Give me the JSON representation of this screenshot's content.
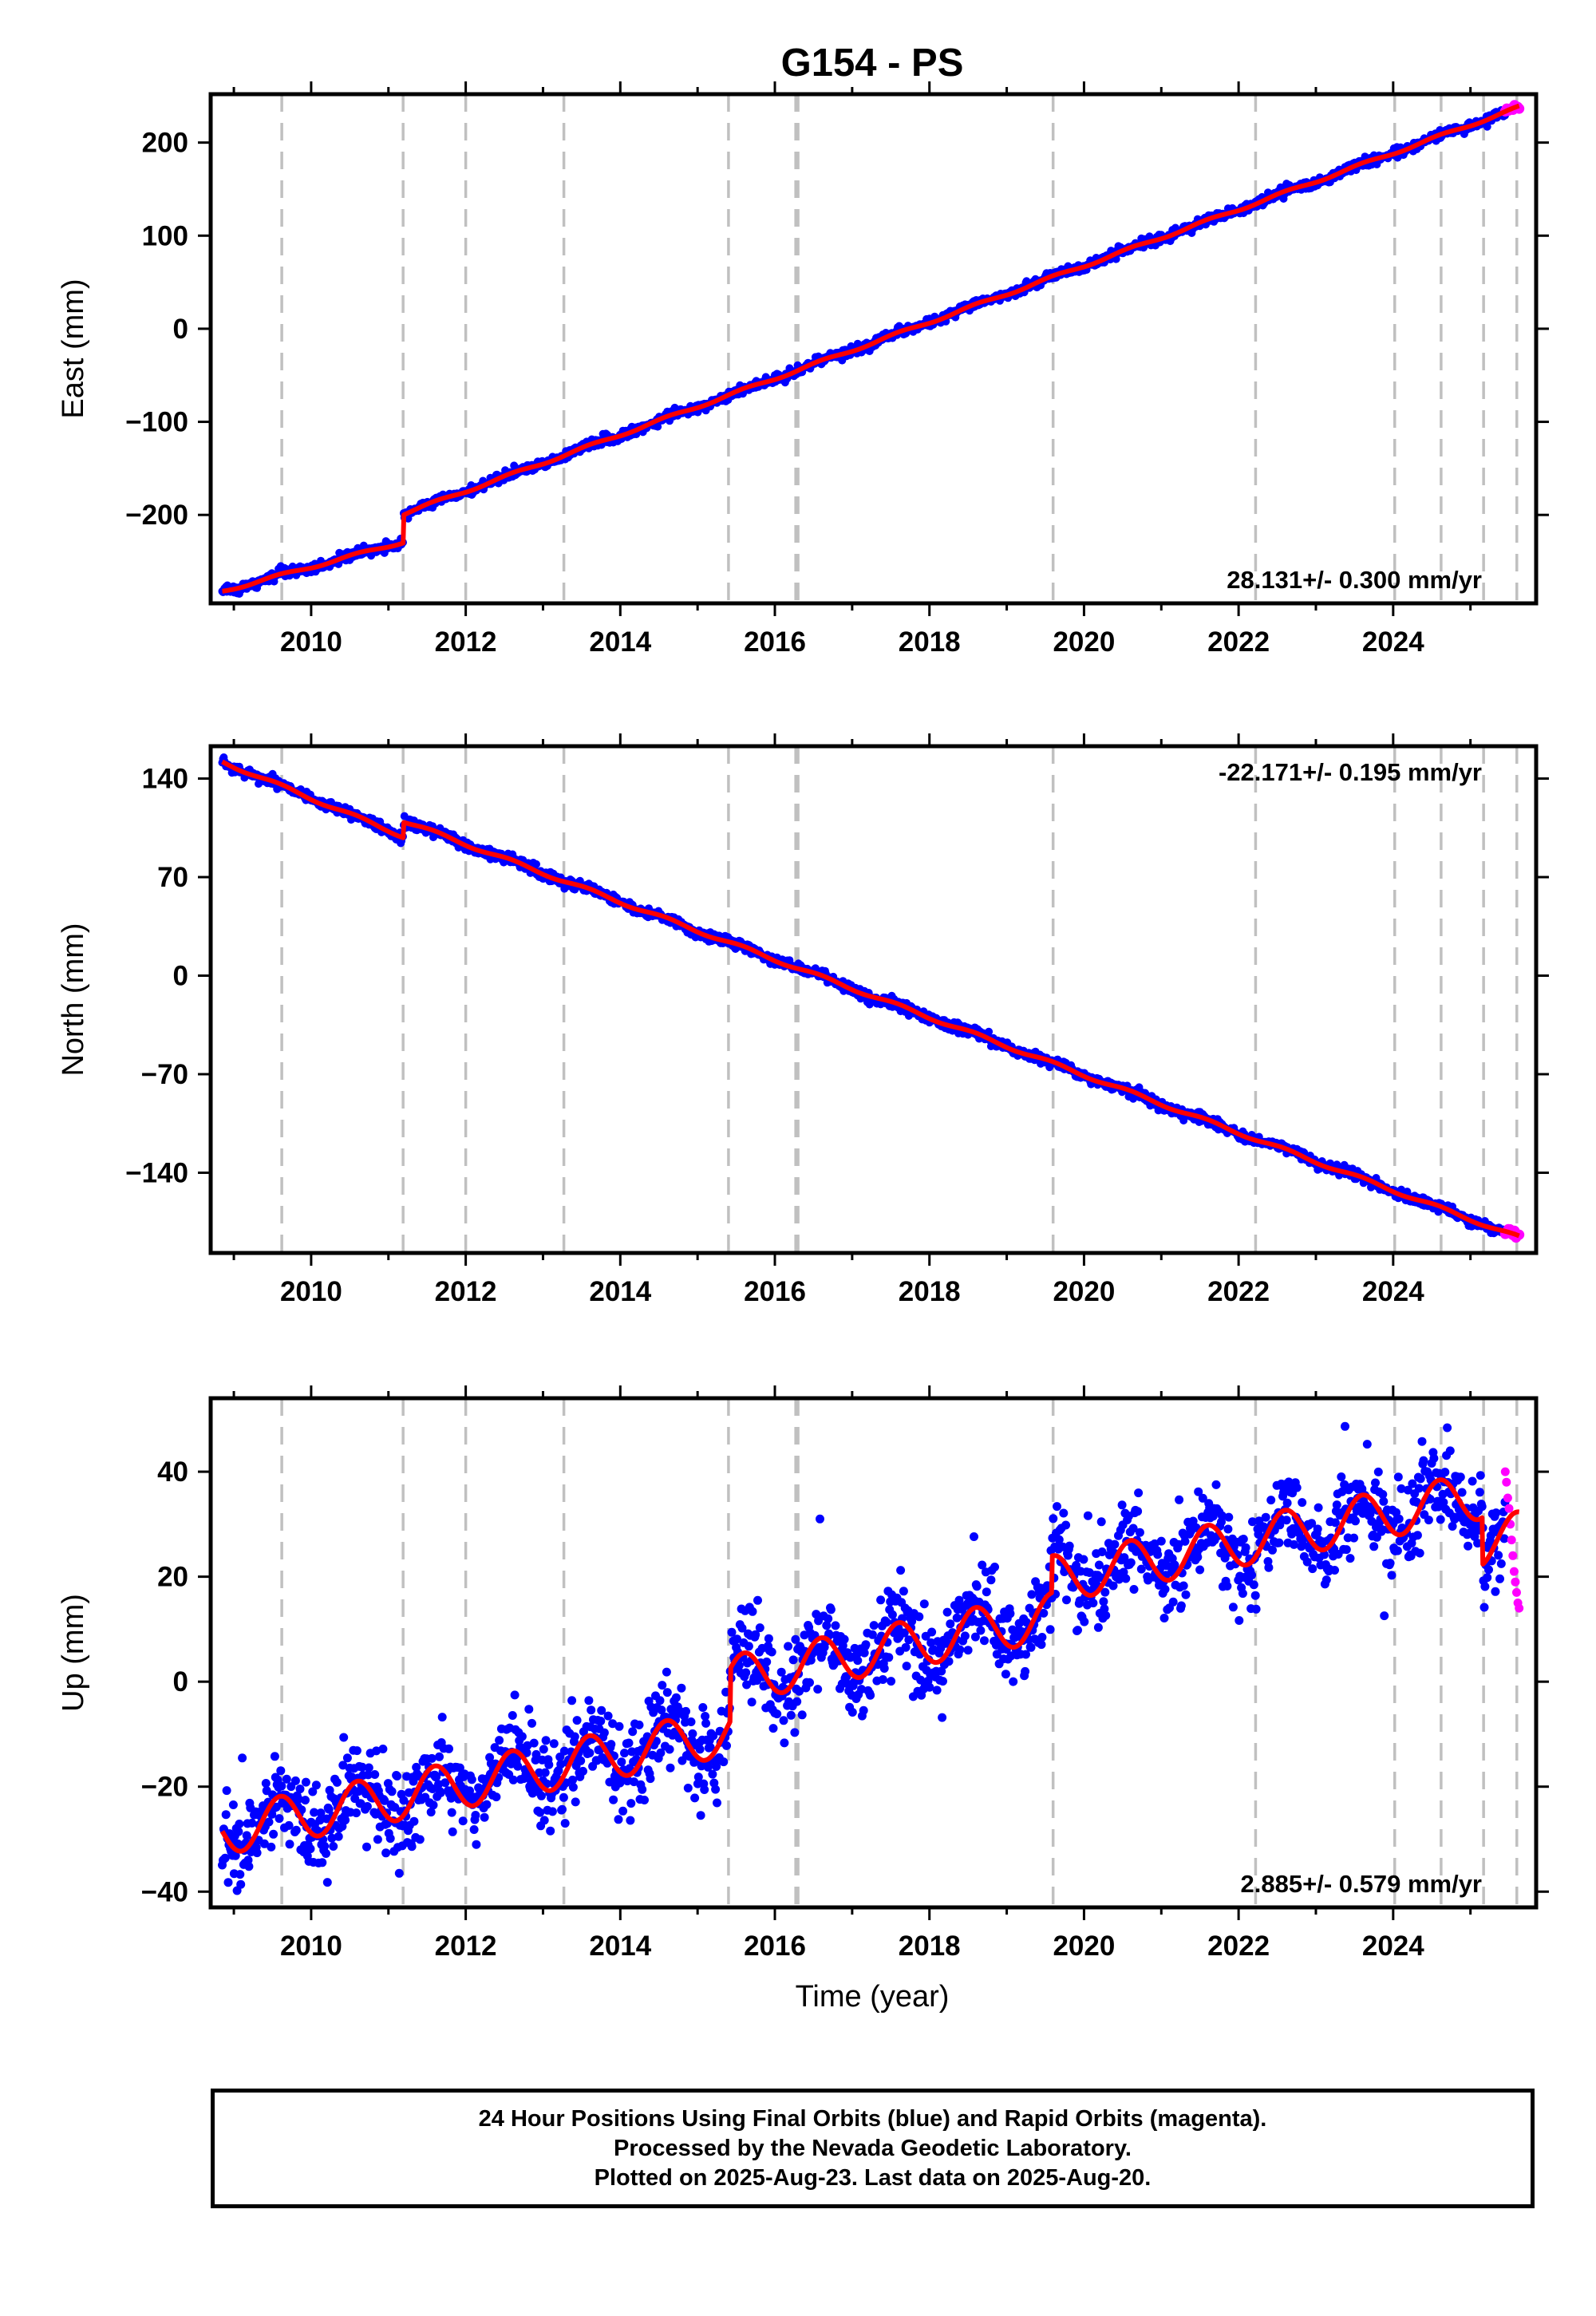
{
  "title": "G154 - PS",
  "xlabel": "Time (year)",
  "footer": {
    "line1": "24 Hour Positions Using Final Orbits (blue) and Rapid Orbits (magenta).",
    "line2": "Processed by the Nevada Geodetic Laboratory.",
    "line3": "Plotted on 2025-Aug-23. Last data on 2025-Aug-20."
  },
  "colors": {
    "final_orbits": "#0000ff",
    "rapid_orbits": "#ff00ff",
    "model_fit": "#ff0000",
    "equipment_change_lines": "#c0c0c0"
  },
  "chart_data": [
    {
      "type": "scatter",
      "panel": "east",
      "ylabel": "East (mm)",
      "xlim": [
        2008.7,
        2025.85
      ],
      "ylim": [
        -295,
        252
      ],
      "xticks": [
        2010,
        2012,
        2014,
        2016,
        2018,
        2020,
        2022,
        2024
      ],
      "yticks": [
        -200,
        -100,
        0,
        100,
        200
      ],
      "grid": false,
      "rate_label": "28.131+/- 0.300 mm/yr",
      "rate_label_position": "bottom-right",
      "rate": 28.131,
      "annual_amplitude": 1.5,
      "offsets": [
        {
          "year": 2011.19,
          "step": 30
        }
      ],
      "series": [
        {
          "name": "Final Orbits",
          "x_range": [
            2008.85,
            2025.45
          ],
          "jitter": 2.5
        },
        {
          "name": "Rapid Orbits",
          "x_range": [
            2025.45,
            2025.63
          ],
          "jitter": 2.5
        },
        {
          "name": "Model fit",
          "x": [
            2008.85,
            2011.19,
            2011.19,
            2025.63
          ],
          "y": [
            -282,
            -229,
            -199,
            238
          ]
        }
      ]
    },
    {
      "type": "scatter",
      "panel": "north",
      "ylabel": "North (mm)",
      "xlim": [
        2008.7,
        2025.85
      ],
      "ylim": [
        -197,
        163
      ],
      "xticks": [
        2010,
        2012,
        2014,
        2016,
        2018,
        2020,
        2022,
        2024
      ],
      "yticks": [
        -140,
        -70,
        0,
        70,
        140
      ],
      "grid": false,
      "rate_label": "-22.171+/- 0.195 mm/yr",
      "rate_label_position": "top-right",
      "rate": -22.171,
      "annual_amplitude": 1.2,
      "offsets": [
        {
          "year": 2011.19,
          "step": 11
        }
      ],
      "series": [
        {
          "name": "Final Orbits",
          "x_range": [
            2008.85,
            2025.45
          ],
          "jitter": 1.8
        },
        {
          "name": "Rapid Orbits",
          "x_range": [
            2025.45,
            2025.63
          ],
          "jitter": 1.8
        },
        {
          "name": "Model fit",
          "x": [
            2008.85,
            2011.19,
            2011.19,
            2025.63
          ],
          "y": [
            152,
            99,
            110,
            -186
          ]
        }
      ]
    },
    {
      "type": "scatter",
      "panel": "up",
      "ylabel": "Up (mm)",
      "xlim": [
        2008.7,
        2025.85
      ],
      "ylim": [
        -43,
        54
      ],
      "xticks": [
        2010,
        2012,
        2014,
        2016,
        2018,
        2020,
        2022,
        2024
      ],
      "yticks": [
        -40,
        -20,
        0,
        20,
        40
      ],
      "grid": false,
      "rate_label": "2.885+/- 0.579 mm/yr",
      "rate_label_position": "bottom-right",
      "rate": 2.885,
      "annual_amplitude": 4.5,
      "offsets": [
        {
          "year": 2015.42,
          "step": 10
        },
        {
          "year": 2019.58,
          "step": 7
        },
        {
          "year": 2025.15,
          "step": -9
        }
      ],
      "series": [
        {
          "name": "Final Orbits",
          "x_range": [
            2008.85,
            2025.45
          ],
          "jitter": 4.0
        },
        {
          "name": "Rapid Orbits",
          "x_range": [
            2025.45,
            2025.63
          ],
          "jitter": 4.0,
          "y": [
            40,
            38,
            35,
            33,
            30,
            27,
            24,
            21,
            19,
            17,
            15,
            14
          ]
        },
        {
          "name": "Model fit",
          "x_range": [
            2008.85,
            2025.63
          ],
          "y_start": -28.5
        }
      ]
    }
  ],
  "equipment_changes": [
    2009.62,
    2011.19,
    2012.0,
    2013.27,
    2015.4,
    2016.27,
    2016.3,
    2019.6,
    2022.22,
    2024.02,
    2024.62,
    2025.17,
    2025.6
  ]
}
